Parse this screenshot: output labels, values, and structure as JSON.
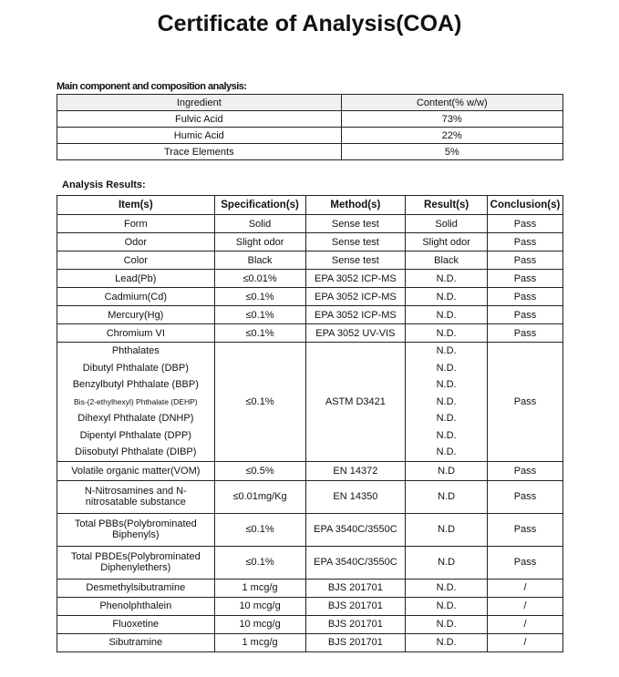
{
  "title": "Certificate of Analysis(COA)",
  "composition": {
    "label": "Main component and composition analysis:",
    "headers": [
      "Ingredient",
      "Content(% w/w)"
    ],
    "rows": [
      [
        "Fulvic Acid",
        "73%"
      ],
      [
        "Humic Acid",
        "22%"
      ],
      [
        "Trace Elements",
        "5%"
      ]
    ]
  },
  "results": {
    "label": "Analysis Results:",
    "headers": [
      "Item(s)",
      "Specification(s)",
      "Method(s)",
      "Result(s)",
      "Conclusion(s)"
    ],
    "rows_top": [
      [
        "Form",
        "Solid",
        "Sense test",
        "Solid",
        "Pass"
      ],
      [
        "Odor",
        "Slight odor",
        "Sense test",
        "Slight odor",
        "Pass"
      ],
      [
        "Color",
        "Black",
        "Sense test",
        "Black",
        "Pass"
      ],
      [
        "Lead(Pb)",
        "≤0.01%",
        "EPA 3052 ICP-MS",
        "N.D.",
        "Pass"
      ],
      [
        "Cadmium(Cd)",
        "≤0.1%",
        "EPA 3052 ICP-MS",
        "N.D.",
        "Pass"
      ],
      [
        "Mercury(Hg)",
        "≤0.1%",
        "EPA 3052 ICP-MS",
        "N.D.",
        "Pass"
      ],
      [
        "Chromium VI",
        "≤0.1%",
        "EPA 3052 UV-VIS",
        "N.D.",
        "Pass"
      ]
    ],
    "phthalates": {
      "items": [
        "Phthalates",
        "Dibutyl Phthalate (DBP)",
        "Benzylbutyl Phthalate (BBP)",
        "Bis-(2-ethylhexyl) Phthalate (DEHP)",
        "Dihexyl Phthalate (DNHP)",
        "Dipentyl Phthalate (DPP)",
        "Diisobutyl Phthalate (DIBP)"
      ],
      "spec": "≤0.1%",
      "method": "ASTM D3421",
      "results": [
        "N.D.",
        "N.D.",
        "N.D.",
        "N.D.",
        "N.D.",
        "N.D.",
        "N.D."
      ],
      "conclusion": "Pass"
    },
    "rows_bottom": [
      [
        "Volatile organic matter(VOM)",
        "≤0.5%",
        "EN 14372",
        "N.D",
        "Pass"
      ],
      [
        "N-Nitrosamines and N-nitrosatable substance",
        "≤0.01mg/Kg",
        "EN 14350",
        "N.D",
        "Pass"
      ],
      [
        "Total PBBs(Polybrominated Biphenyls)",
        "≤0.1%",
        "EPA 3540C/3550C",
        "N.D",
        "Pass"
      ],
      [
        "Total PBDEs(Polybrominated Diphenylethers)",
        "≤0.1%",
        "EPA 3540C/3550C",
        "N.D",
        "Pass"
      ],
      [
        "Desmethylsibutramine",
        "1 mcg/g",
        "BJS 201701",
        "N.D.",
        "/"
      ],
      [
        "Phenolphthalein",
        "10 mcg/g",
        "BJS 201701",
        "N.D.",
        "/"
      ],
      [
        "Fluoxetine",
        "10 mcg/g",
        "BJS 201701",
        "N.D.",
        "/"
      ],
      [
        "Sibutramine",
        "1 mcg/g",
        "BJS 201701",
        "N.D.",
        "/"
      ]
    ]
  }
}
